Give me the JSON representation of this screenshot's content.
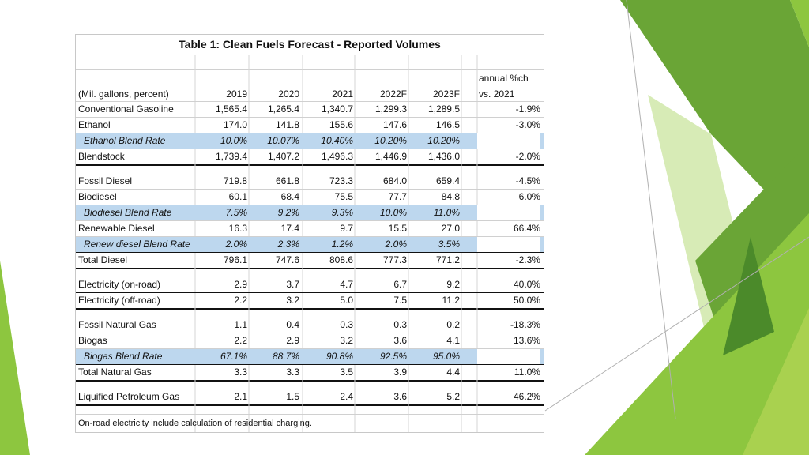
{
  "table": {
    "title": "Table 1: Clean Fuels Forecast - Reported Volumes",
    "header": {
      "label": "(Mil. gallons, percent)",
      "years": [
        "2019",
        "2020",
        "2021",
        "2022F",
        "2023F"
      ],
      "change_line1": "annual %ch",
      "change_line2": "vs. 2021"
    },
    "groups": [
      {
        "rows": [
          {
            "label": "Conventional Gasoline",
            "values": [
              "1,565.4",
              "1,265.4",
              "1,340.7",
              "1,299.3",
              "1,289.5"
            ],
            "change": "-1.9%"
          },
          {
            "label": "Ethanol",
            "values": [
              "174.0",
              "141.8",
              "155.6",
              "147.6",
              "146.5"
            ],
            "change": "-3.0%"
          },
          {
            "label": "Ethanol Blend Rate",
            "values": [
              "10.0%",
              "10.07%",
              "10.40%",
              "10.20%",
              "10.20%"
            ],
            "change": ""
          },
          {
            "label": "Blendstock",
            "values": [
              "1,739.4",
              "1,407.2",
              "1,496.3",
              "1,446.9",
              "1,436.0"
            ],
            "change": "-2.0%"
          }
        ]
      },
      {
        "rows": [
          {
            "label": "Fossil Diesel",
            "values": [
              "719.8",
              "661.8",
              "723.3",
              "684.0",
              "659.4"
            ],
            "change": "-4.5%"
          },
          {
            "label": "Biodiesel",
            "values": [
              "60.1",
              "68.4",
              "75.5",
              "77.7",
              "84.8"
            ],
            "change": "6.0%"
          },
          {
            "label": "Biodiesel Blend Rate",
            "values": [
              "7.5%",
              "9.2%",
              "9.3%",
              "10.0%",
              "11.0%"
            ],
            "change": ""
          },
          {
            "label": "Renewable Diesel",
            "values": [
              "16.3",
              "17.4",
              "9.7",
              "15.5",
              "27.0"
            ],
            "change": "66.4%"
          },
          {
            "label": "Renew diesel Blend Rate",
            "values": [
              "2.0%",
              "2.3%",
              "1.2%",
              "2.0%",
              "3.5%"
            ],
            "change": ""
          },
          {
            "label": "Total Diesel",
            "values": [
              "796.1",
              "747.6",
              "808.6",
              "777.3",
              "771.2"
            ],
            "change": "-2.3%"
          }
        ]
      },
      {
        "rows": [
          {
            "label": "Electricity (on-road)",
            "values": [
              "2.9",
              "3.7",
              "4.7",
              "6.7",
              "9.2"
            ],
            "change": "40.0%"
          },
          {
            "label": "Electricity (off-road)",
            "values": [
              "2.2",
              "3.2",
              "5.0",
              "7.5",
              "11.2"
            ],
            "change": "50.0%"
          }
        ]
      },
      {
        "rows": [
          {
            "label": "Fossil Natural Gas",
            "values": [
              "1.1",
              "0.4",
              "0.3",
              "0.3",
              "0.2"
            ],
            "change": "-18.3%"
          },
          {
            "label": "Biogas",
            "values": [
              "2.2",
              "2.9",
              "3.2",
              "3.6",
              "4.1"
            ],
            "change": "13.6%"
          },
          {
            "label": "Biogas Blend Rate",
            "values": [
              "67.1%",
              "88.7%",
              "90.8%",
              "92.5%",
              "95.0%"
            ],
            "change": ""
          },
          {
            "label": "Total Natural Gas",
            "values": [
              "3.3",
              "3.3",
              "3.5",
              "3.9",
              "4.4"
            ],
            "change": "11.0%"
          }
        ]
      },
      {
        "rows": [
          {
            "label": "Liquified Petroleum Gas",
            "values": [
              "2.1",
              "1.5",
              "2.4",
              "3.6",
              "5.2"
            ],
            "change": "46.2%"
          }
        ]
      }
    ],
    "footnote": "On-road electricity include calculation of residential charging."
  },
  "theme": {
    "blend_rate_fill": "#bdd7ee",
    "accent_greens": [
      "#8dc63f",
      "#6aa536",
      "#4b8a2a",
      "#c9e29a"
    ]
  }
}
